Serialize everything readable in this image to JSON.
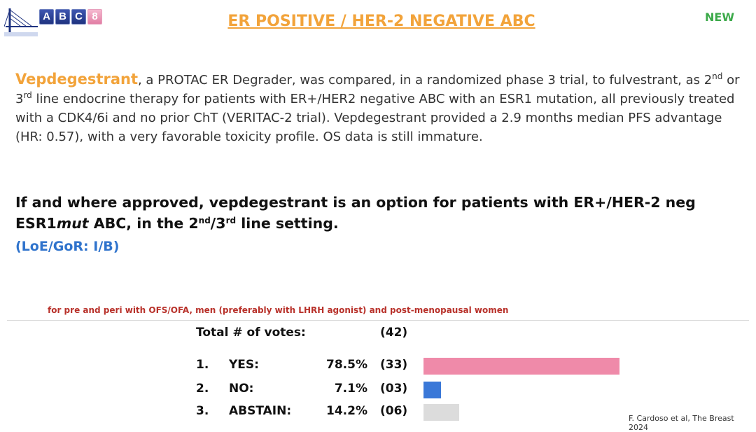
{
  "logo": {
    "letters": [
      "A",
      "B",
      "C",
      "8"
    ]
  },
  "header": {
    "title": "ER POSITIVE / HER-2 NEGATIVE ABC",
    "badge": "NEW"
  },
  "statement": {
    "runs": [
      {
        "text": "Vepdegestrant",
        "format": "highlight"
      },
      {
        "text": ", a PROTAC ER Degrader, was compared, in a randomized phase 3 trial, to fulvestrant, as 2"
      },
      {
        "text": "nd",
        "format": "sup"
      },
      {
        "text": " or 3"
      },
      {
        "text": "rd",
        "format": "sup"
      },
      {
        "text": " line endocrine therapy for patients with ER+/HER2 negative ABC with an ESR1 mutation, all previously treated with a CDK4/6i and no prior ChT (VERITAC-2 trial). Vepdegestrant provided a 2.9 months median PFS advantage (HR: 0.57), with a very favorable toxicity profile. OS data is still immature."
      }
    ]
  },
  "recommendation": {
    "runs": [
      {
        "text": "If and where approved, vepdegestrant is an option for patients with ER+/HER-2 neg ESR1"
      },
      {
        "text": "mut",
        "format": "italic"
      },
      {
        "text": " ABC, in the 2"
      },
      {
        "text": "nd",
        "format": "sup"
      },
      {
        "text": "/3"
      },
      {
        "text": "rd",
        "format": "sup"
      },
      {
        "text": " line setting."
      }
    ],
    "level": "(LoE/GoR: I/B)"
  },
  "note": "for pre and peri with OFS/OFA, men (preferably with LHRH agonist) and post-menopausal women",
  "votes": {
    "total_label": "Total # of votes:",
    "total": "(42)",
    "items": [
      {
        "number": "1.",
        "label": "YES:",
        "percent": 78.5,
        "percent_label": "78.5%",
        "count": "(33)",
        "color": "#ef8aa9"
      },
      {
        "number": "2.",
        "label": "NO:",
        "percent": 7.1,
        "percent_label": "7.1%",
        "count": "(03)",
        "color": "#3a78d8"
      },
      {
        "number": "3.",
        "label": "ABSTAIN:",
        "percent": 14.2,
        "percent_label": "14.2%",
        "count": "(06)",
        "color": "#dcdcdc"
      }
    ]
  },
  "citation": "F. Cardoso et al, The Breast 2024"
}
